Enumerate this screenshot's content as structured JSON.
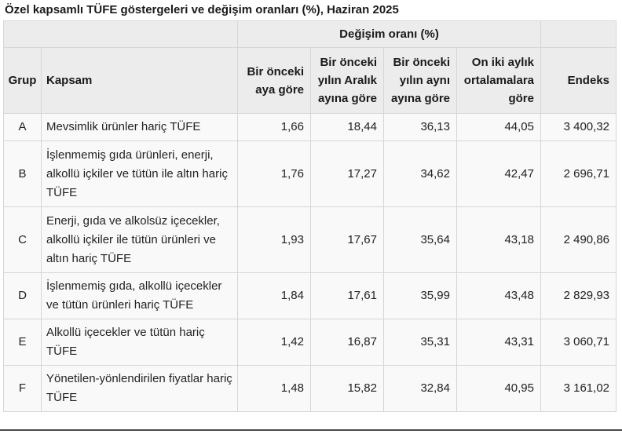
{
  "title": "Özel kapsamlı TÜFE göstergeleri ve değişim oranları (%), Haziran 2025",
  "header": {
    "group_label": "Değişim oranı (%)",
    "col_grup": "Grup",
    "col_kapsam": "Kapsam",
    "col_aylik": "Bir önceki aya göre",
    "col_aralik": "Bir önceki yılın Aralık ayına göre",
    "col_yillik": "Bir önceki yılın aynı ayına göre",
    "col_ortalama": "On iki aylık ortalamalara göre",
    "col_endeks": "Endeks"
  },
  "rows": [
    {
      "grup": "A",
      "kapsam": "Mevsimlik ürünler hariç TÜFE",
      "aylik": "1,66",
      "aralik": "18,44",
      "yillik": "36,13",
      "ortalama": "44,05",
      "endeks": "3 400,32"
    },
    {
      "grup": "B",
      "kapsam": "İşlenmemiş gıda ürünleri, enerji, alkollü içkiler ve tütün ile altın hariç TÜFE",
      "aylik": "1,76",
      "aralik": "17,27",
      "yillik": "34,62",
      "ortalama": "42,47",
      "endeks": "2 696,71"
    },
    {
      "grup": "C",
      "kapsam": "Enerji, gıda ve alkolsüz içecekler, alkollü içkiler ile tütün ürünleri ve altın hariç TÜFE",
      "aylik": "1,93",
      "aralik": "17,67",
      "yillik": "35,64",
      "ortalama": "43,18",
      "endeks": "2 490,86"
    },
    {
      "grup": "D",
      "kapsam": "İşlenmemiş gıda, alkollü içecekler ve tütün ürünleri hariç TÜFE",
      "aylik": "1,84",
      "aralik": "17,61",
      "yillik": "35,99",
      "ortalama": "43,48",
      "endeks": "2 829,93"
    },
    {
      "grup": "E",
      "kapsam": "Alkollü içecekler ve tütün hariç TÜFE",
      "aylik": "1,42",
      "aralik": "16,87",
      "yillik": "35,31",
      "ortalama": "43,31",
      "endeks": "3 060,71"
    },
    {
      "grup": "F",
      "kapsam": "Yönetilen-yönlendirilen fiyatlar hariç TÜFE",
      "aylik": "1,48",
      "aralik": "15,82",
      "yillik": "32,84",
      "ortalama": "40,95",
      "endeks": "3 161,02"
    }
  ]
}
